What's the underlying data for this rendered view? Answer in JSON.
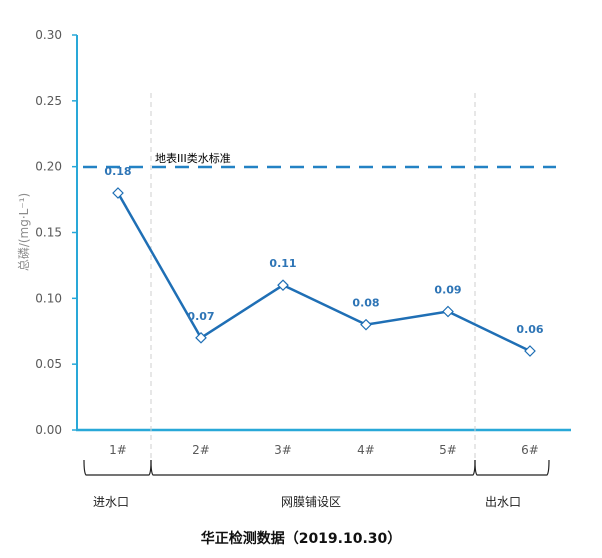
{
  "chart_data": {
    "type": "line",
    "title": "华正检测数据（2019.10.30）",
    "xlabel": "",
    "ylabel": "总磷/(mg·L⁻¹)",
    "categories": [
      "1#",
      "2#",
      "3#",
      "4#",
      "5#",
      "6#"
    ],
    "series": [
      {
        "name": "总磷",
        "values": [
          0.18,
          0.07,
          0.11,
          0.08,
          0.09,
          0.06
        ],
        "color": "#1f6fb5"
      }
    ],
    "data_labels": [
      "0.18",
      "0.07",
      "0.11",
      "0.08",
      "0.09",
      "0.06"
    ],
    "ylim": [
      0,
      0.3
    ],
    "yticks": [
      "0.00",
      "0.05",
      "0.10",
      "0.15",
      "0.20",
      "0.25",
      "0.30"
    ],
    "reference_line": {
      "label": "地表III类水标准",
      "value": 0.2,
      "style": "dashed",
      "color": "#2382c4"
    },
    "zones": [
      {
        "label": "进水口",
        "categories": [
          "1#"
        ]
      },
      {
        "label": "网膜铺设区",
        "categories": [
          "2#",
          "3#",
          "4#",
          "5#"
        ]
      },
      {
        "label": "出水口",
        "categories": [
          "6#"
        ]
      }
    ],
    "grid": false,
    "legend": null
  },
  "axis_color": "#29a8d8",
  "line_color": "#1f6fb5",
  "label_color": "#2e75b6"
}
